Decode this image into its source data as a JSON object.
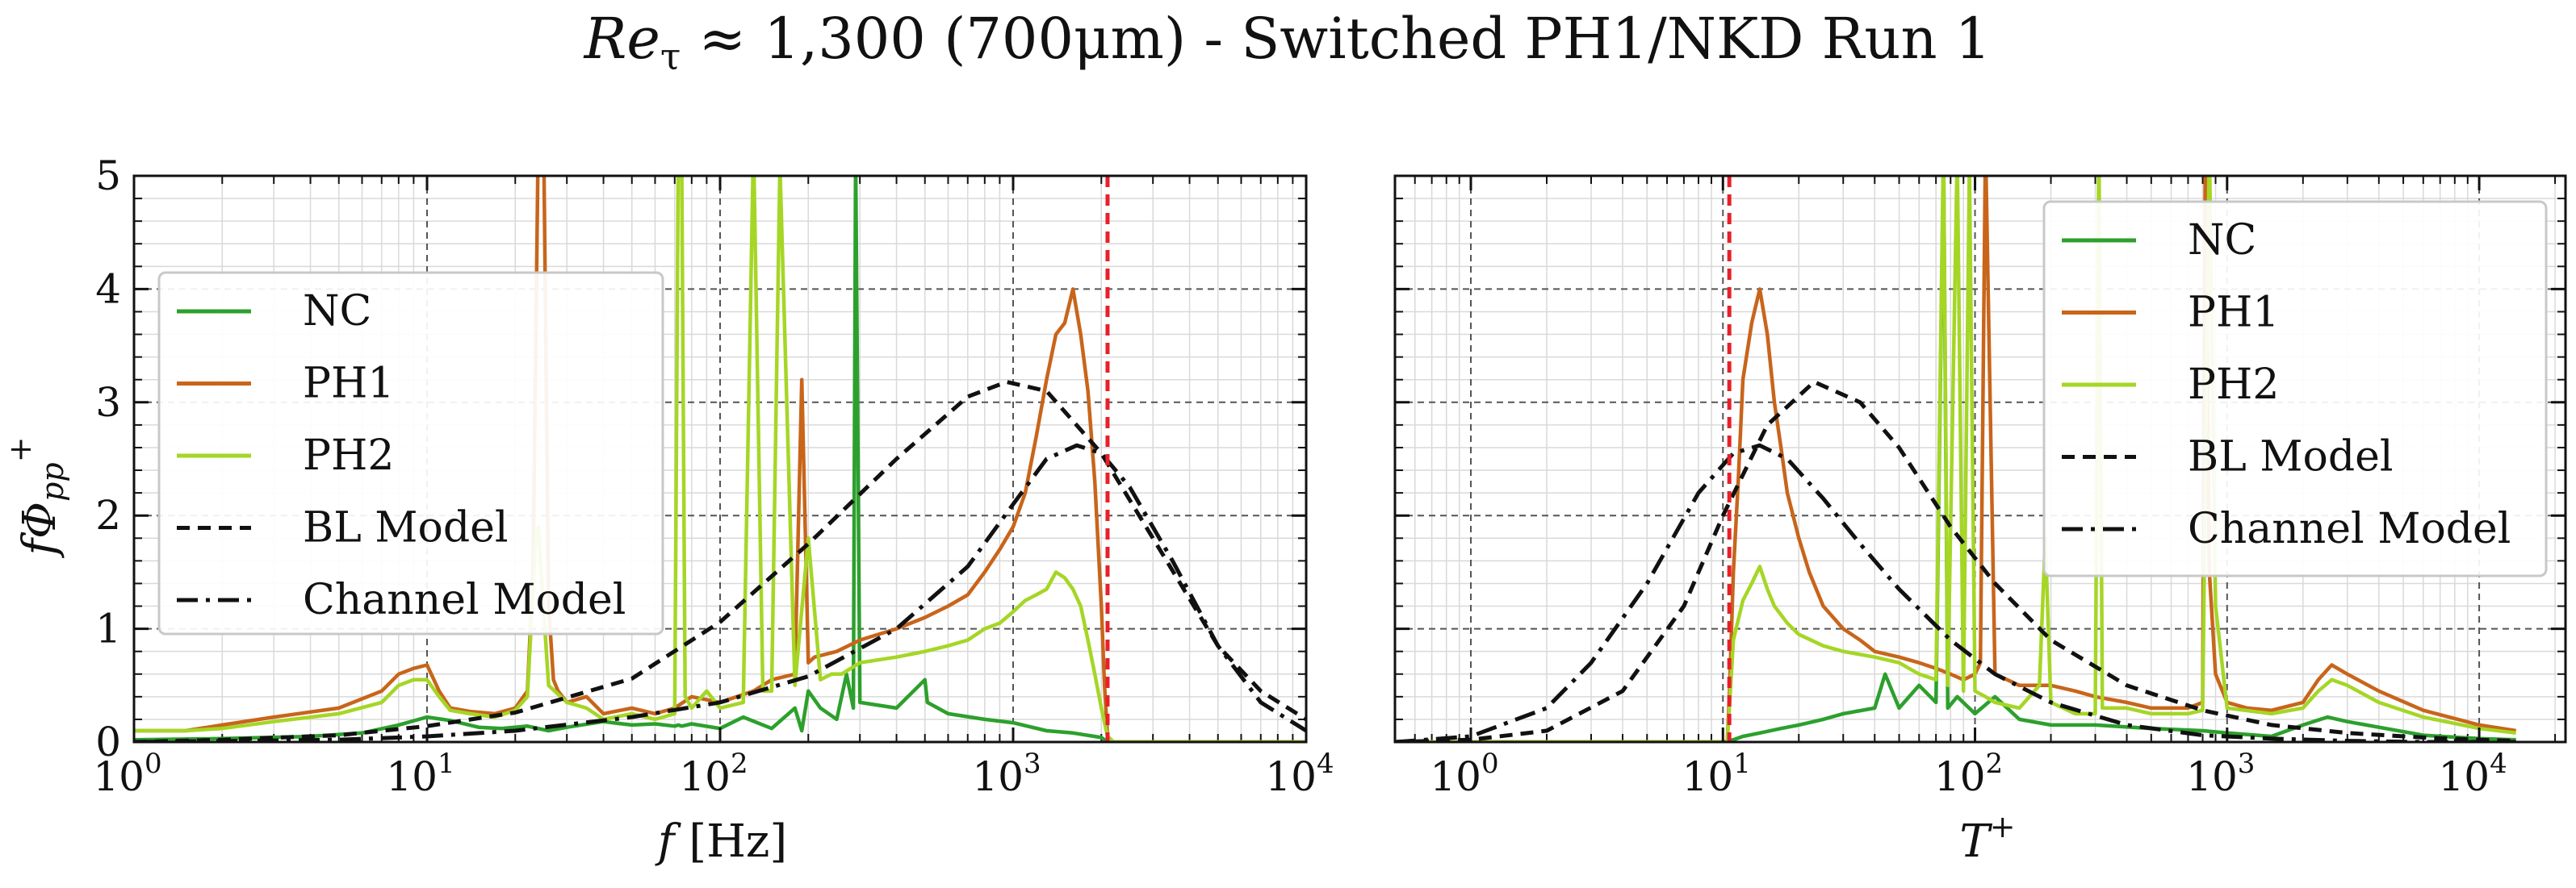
{
  "figure": {
    "title_main": "Re",
    "title_sub": "τ",
    "title_rest": " ≈ 1,300 (700μm) - Switched PH1/NKD Run 1"
  },
  "colors": {
    "NC": "#2ca02c",
    "PH1": "#c8651b",
    "PH2": "#a5d626",
    "BL Model": "#111111",
    "Channel Model": "#111111",
    "cutoff": "#e8202a"
  },
  "chart_data": [
    {
      "type": "line",
      "x_scale": "log",
      "xlim": [
        1,
        10000
      ],
      "ylim": [
        0,
        5
      ],
      "xlabel_main": "f",
      "xlabel_rest": " [Hz]",
      "ylabel": "fΦpp+",
      "ylabel_parts": {
        "main": "fΦ",
        "sub": "pp",
        "sup": "+"
      },
      "x_ticks": [
        {
          "base": "10",
          "exp": "0",
          "value": 1
        },
        {
          "base": "10",
          "exp": "1",
          "value": 10
        },
        {
          "base": "10",
          "exp": "2",
          "value": 100
        },
        {
          "base": "10",
          "exp": "3",
          "value": 1000
        },
        {
          "base": "10",
          "exp": "4",
          "value": 10000
        }
      ],
      "y_ticks": [
        "0",
        "1",
        "2",
        "3",
        "4",
        "5"
      ],
      "legend": [
        "NC",
        "PH1",
        "PH2",
        "BL Model",
        "Channel Model"
      ],
      "legend_location": "center-left",
      "cutoff_x": 2100,
      "series": [
        {
          "name": "NC",
          "x": [
            1,
            2,
            4,
            6,
            8,
            10,
            12,
            15,
            18,
            22,
            26,
            30,
            40,
            50,
            60,
            70,
            72,
            74,
            80,
            100,
            120,
            150,
            180,
            190,
            200,
            220,
            250,
            270,
            285,
            290,
            300,
            400,
            500,
            510,
            600,
            800,
            1000,
            1300,
            1600,
            2000,
            2100,
            2300,
            10000
          ],
          "y": [
            0.02,
            0.03,
            0.05,
            0.08,
            0.15,
            0.22,
            0.19,
            0.13,
            0.12,
            0.14,
            0.1,
            0.13,
            0.18,
            0.15,
            0.16,
            0.14,
            0.15,
            0.14,
            0.16,
            0.12,
            0.22,
            0.12,
            0.3,
            0.1,
            0.45,
            0.3,
            0.2,
            0.6,
            0.3,
            5.2,
            0.35,
            0.3,
            0.55,
            0.35,
            0.25,
            0.2,
            0.17,
            0.1,
            0.08,
            0.04,
            0.0,
            0.0,
            0.0
          ]
        },
        {
          "name": "PH1",
          "x": [
            1,
            1.5,
            2,
            3,
            5,
            7,
            8,
            9,
            10,
            11,
            12,
            14,
            17,
            20,
            22,
            23,
            24,
            25,
            26,
            27,
            28,
            30,
            35,
            40,
            50,
            60,
            70,
            80,
            100,
            130,
            150,
            180,
            190,
            200,
            210,
            250,
            300,
            400,
            500,
            600,
            700,
            800,
            900,
            1000,
            1100,
            1200,
            1300,
            1400,
            1500,
            1600,
            1700,
            1800,
            1900,
            2000,
            2050,
            2100,
            2200,
            2500,
            10000
          ],
          "y": [
            0.1,
            0.1,
            0.15,
            0.22,
            0.3,
            0.45,
            0.6,
            0.65,
            0.68,
            0.45,
            0.3,
            0.27,
            0.25,
            0.3,
            0.45,
            1.5,
            5.5,
            5.3,
            1.2,
            0.55,
            0.45,
            0.35,
            0.4,
            0.25,
            0.3,
            0.25,
            0.3,
            0.4,
            0.35,
            0.45,
            0.55,
            0.6,
            3.2,
            0.7,
            0.75,
            0.8,
            0.9,
            1.0,
            1.1,
            1.2,
            1.3,
            1.5,
            1.7,
            1.9,
            2.2,
            2.7,
            3.2,
            3.6,
            3.7,
            4.0,
            3.6,
            3.1,
            2.3,
            1.2,
            0.5,
            0.05,
            0.0,
            0.0,
            0.0
          ]
        },
        {
          "name": "PH2",
          "x": [
            1,
            1.5,
            2,
            3,
            5,
            7,
            8,
            9,
            10,
            11,
            12,
            14,
            17,
            20,
            22,
            23.5,
            24,
            24.5,
            26,
            30,
            35,
            40,
            50,
            60,
            70,
            72,
            74,
            76,
            80,
            90,
            100,
            120,
            130,
            140,
            150,
            160,
            180,
            200,
            220,
            240,
            260,
            300,
            400,
            500,
            600,
            700,
            800,
            900,
            1000,
            1100,
            1200,
            1300,
            1400,
            1500,
            1600,
            1700,
            1800,
            1900,
            2000,
            2100,
            2200,
            10000
          ],
          "y": [
            0.1,
            0.1,
            0.12,
            0.18,
            0.25,
            0.35,
            0.5,
            0.55,
            0.55,
            0.4,
            0.28,
            0.25,
            0.22,
            0.28,
            0.4,
            1.8,
            1.9,
            1.5,
            0.5,
            0.35,
            0.3,
            0.2,
            0.25,
            0.2,
            0.25,
            5.2,
            5.1,
            0.4,
            0.3,
            0.45,
            0.3,
            0.35,
            5.3,
            0.45,
            0.45,
            5.1,
            0.5,
            1.8,
            0.55,
            0.6,
            0.6,
            0.7,
            0.75,
            0.8,
            0.85,
            0.9,
            1.0,
            1.05,
            1.15,
            1.25,
            1.3,
            1.35,
            1.5,
            1.45,
            1.35,
            1.2,
            0.9,
            0.6,
            0.3,
            0.05,
            0.0,
            0.0
          ]
        },
        {
          "name": "BL Model",
          "x": [
            1,
            2,
            5,
            10,
            20,
            50,
            100,
            200,
            400,
            700,
            950,
            1300,
            2000,
            3000,
            5000,
            7000,
            10000
          ],
          "y": [
            0.0,
            0.02,
            0.06,
            0.14,
            0.26,
            0.56,
            1.06,
            1.75,
            2.5,
            3.05,
            3.18,
            3.1,
            2.55,
            1.8,
            0.85,
            0.45,
            0.2
          ]
        },
        {
          "name": "Channel Model",
          "x": [
            1,
            5,
            10,
            20,
            50,
            100,
            200,
            400,
            700,
            1000,
            1300,
            1650,
            2000,
            2500,
            3500,
            5000,
            7000,
            10000
          ],
          "y": [
            0.0,
            0.02,
            0.05,
            0.1,
            0.22,
            0.35,
            0.58,
            1.0,
            1.55,
            2.1,
            2.5,
            2.62,
            2.55,
            2.25,
            1.6,
            0.85,
            0.35,
            0.1
          ]
        }
      ]
    },
    {
      "type": "line",
      "x_scale": "log",
      "xlim": [
        0.5,
        22000
      ],
      "ylim": [
        0,
        5
      ],
      "xlabel_main": "T",
      "xlabel_sup": "+",
      "x_ticks": [
        {
          "base": "10",
          "exp": "0",
          "value": 1
        },
        {
          "base": "10",
          "exp": "1",
          "value": 10
        },
        {
          "base": "10",
          "exp": "2",
          "value": 100
        },
        {
          "base": "10",
          "exp": "3",
          "value": 1000
        },
        {
          "base": "10",
          "exp": "4",
          "value": 10000
        }
      ],
      "legend": [
        "NC",
        "PH1",
        "PH2",
        "BL Model",
        "Channel Model"
      ],
      "legend_location": "upper-right",
      "cutoff_x": 10.6,
      "series": [
        {
          "name": "NC",
          "x": [
            0.5,
            10,
            11,
            12,
            14,
            17,
            20,
            25,
            30,
            40,
            44,
            50,
            60,
            70,
            75,
            78,
            85,
            100,
            120,
            150,
            200,
            300,
            500,
            800,
            1000,
            1500,
            2000,
            2500,
            3000,
            4000,
            6000,
            10000,
            14000
          ],
          "y": [
            0.0,
            0.0,
            0.02,
            0.05,
            0.08,
            0.12,
            0.15,
            0.2,
            0.25,
            0.3,
            0.6,
            0.3,
            0.5,
            0.35,
            5.2,
            0.3,
            0.4,
            0.25,
            0.4,
            0.2,
            0.15,
            0.15,
            0.12,
            0.1,
            0.08,
            0.05,
            0.15,
            0.22,
            0.18,
            0.13,
            0.06,
            0.03,
            0.02
          ]
        },
        {
          "name": "PH1",
          "x": [
            0.5,
            10.4,
            10.6,
            11,
            11.5,
            12,
            13,
            14,
            15,
            16,
            17,
            18,
            20,
            22,
            25,
            30,
            35,
            40,
            50,
            60,
            70,
            80,
            90,
            100,
            105,
            110,
            120,
            150,
            200,
            250,
            300,
            400,
            500,
            700,
            800,
            820,
            850,
            900,
            1000,
            1200,
            1500,
            2000,
            2300,
            2600,
            3000,
            4000,
            6000,
            10000,
            14000
          ],
          "y": [
            0.0,
            0.0,
            0.4,
            1.5,
            2.3,
            3.2,
            3.7,
            4.0,
            3.6,
            3.0,
            2.6,
            2.2,
            1.8,
            1.5,
            1.2,
            1.0,
            0.9,
            0.8,
            0.75,
            0.7,
            0.65,
            0.6,
            0.55,
            0.6,
            0.7,
            5.3,
            0.6,
            0.5,
            0.5,
            0.45,
            0.4,
            0.35,
            0.3,
            0.3,
            0.35,
            5.3,
            1.5,
            0.6,
            0.35,
            0.3,
            0.28,
            0.35,
            0.55,
            0.68,
            0.6,
            0.45,
            0.28,
            0.15,
            0.1
          ]
        },
        {
          "name": "PH2",
          "x": [
            0.5,
            10.4,
            10.6,
            11,
            12,
            13,
            14,
            15,
            16,
            18,
            20,
            25,
            30,
            40,
            50,
            60,
            70,
            75,
            78,
            85,
            90,
            95,
            100,
            110,
            120,
            150,
            180,
            190,
            200,
            250,
            300,
            310,
            320,
            400,
            500,
            700,
            800,
            850,
            900,
            1000,
            1500,
            2000,
            2300,
            2600,
            3000,
            4000,
            6000,
            10000,
            14000
          ],
          "y": [
            0.0,
            0.0,
            0.3,
            0.9,
            1.25,
            1.4,
            1.55,
            1.35,
            1.2,
            1.05,
            0.95,
            0.85,
            0.8,
            0.75,
            0.7,
            0.6,
            0.55,
            5.3,
            0.5,
            5.2,
            0.45,
            5.1,
            0.45,
            0.4,
            0.35,
            0.3,
            0.5,
            1.8,
            0.35,
            0.25,
            0.25,
            5.3,
            0.3,
            0.3,
            0.25,
            0.25,
            0.28,
            5.3,
            1.2,
            0.3,
            0.25,
            0.3,
            0.45,
            0.55,
            0.5,
            0.35,
            0.22,
            0.12,
            0.08
          ]
        },
        {
          "name": "BL Model",
          "x": [
            0.5,
            1,
            2,
            4,
            7,
            10,
            15,
            23,
            35,
            50,
            80,
            120,
            200,
            400,
            800,
            1500,
            3000,
            6000,
            10000,
            14000
          ],
          "y": [
            0.0,
            0.02,
            0.1,
            0.45,
            1.2,
            2.0,
            2.8,
            3.18,
            3.0,
            2.6,
            1.9,
            1.4,
            0.9,
            0.5,
            0.28,
            0.15,
            0.08,
            0.04,
            0.02,
            0.01
          ]
        },
        {
          "name": "Channel Model",
          "x": [
            0.5,
            1,
            2,
            3,
            5,
            8,
            11,
            14,
            18,
            25,
            35,
            50,
            80,
            120,
            200,
            400,
            800,
            1500,
            3000,
            6000,
            14000
          ],
          "y": [
            0.0,
            0.05,
            0.3,
            0.7,
            1.4,
            2.2,
            2.55,
            2.62,
            2.5,
            2.15,
            1.75,
            1.35,
            0.9,
            0.6,
            0.35,
            0.15,
            0.06,
            0.03,
            0.01,
            0.0,
            0.0
          ]
        }
      ]
    }
  ]
}
